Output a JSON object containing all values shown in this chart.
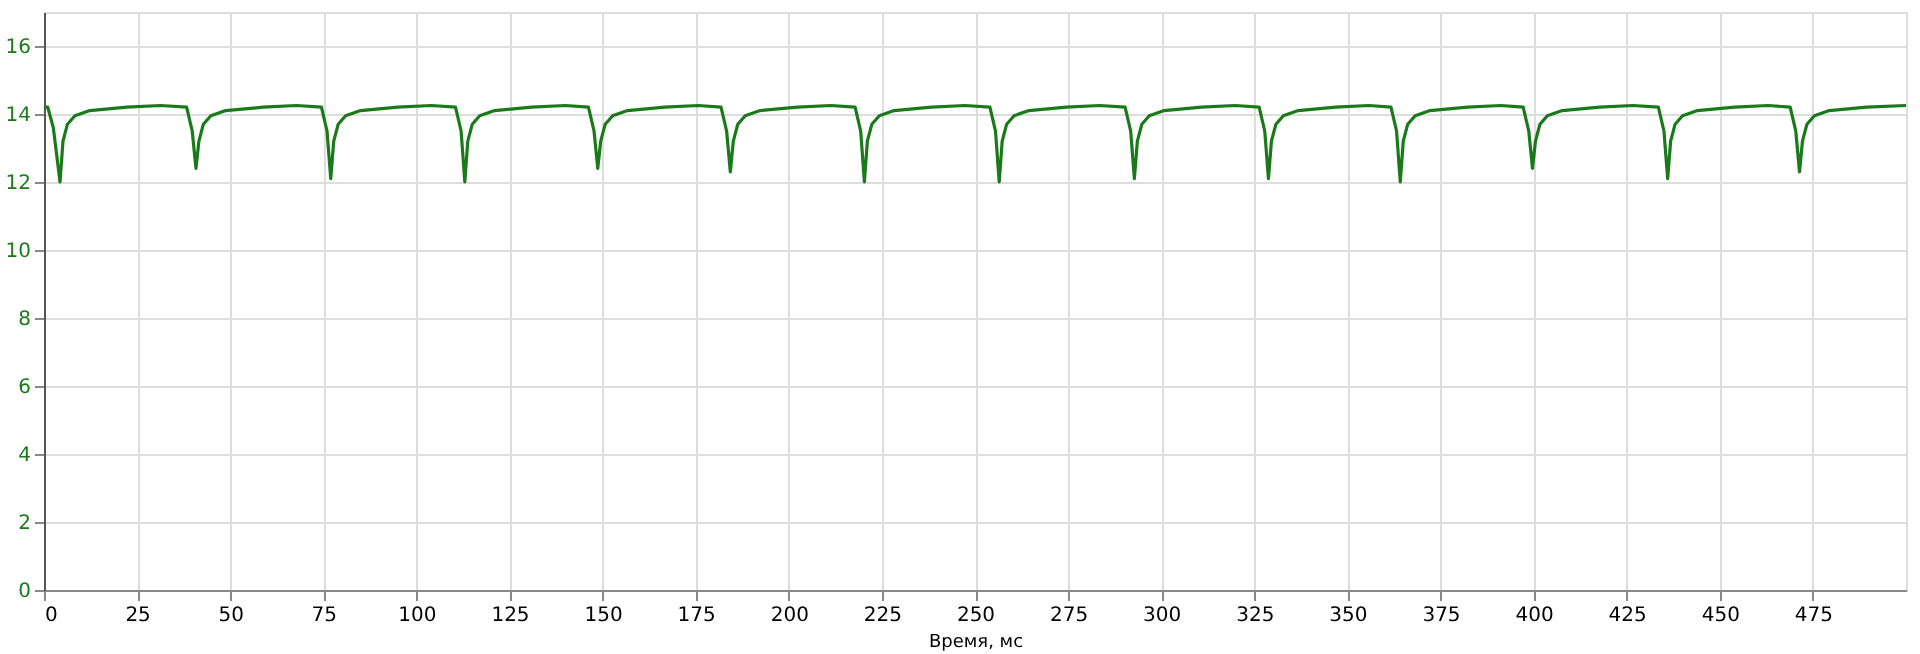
{
  "chart_data": {
    "type": "line",
    "xlabel": "Время, мс",
    "xlim": [
      0,
      500
    ],
    "xticks": [
      0,
      25,
      50,
      75,
      100,
      125,
      150,
      175,
      200,
      225,
      250,
      275,
      300,
      325,
      350,
      375,
      400,
      425,
      450,
      475
    ],
    "ylim": [
      0,
      17
    ],
    "yticks": [
      0,
      2,
      4,
      6,
      8,
      10,
      12,
      14,
      16
    ],
    "grid": true,
    "marker": "none",
    "line_style": "solid",
    "series": [
      {
        "color": "#1a7a1a",
        "x": [
          0,
          1,
          2.5,
          4.3,
          5.1,
          6.3,
          8.3,
          12.3,
          22.3,
          31.3,
          38.3,
          39.8,
          40.8,
          41.6,
          42.8,
          44.8,
          48.8,
          58.8,
          67.8,
          74.5,
          76.0,
          77.0,
          77.8,
          79.0,
          81.0,
          85.0,
          95.0,
          104.0,
          110.5,
          112.0,
          113.0,
          113.8,
          115.0,
          117.0,
          121.0,
          131.0,
          140.0,
          146.2,
          147.7,
          148.7,
          149.5,
          150.7,
          152.7,
          156.7,
          166.7,
          175.7,
          181.8,
          183.3,
          184.3,
          185.1,
          186.3,
          188.3,
          192.3,
          202.3,
          211.3,
          217.8,
          219.3,
          220.3,
          221.1,
          222.3,
          224.3,
          228.3,
          238.3,
          247.3,
          254.0,
          255.5,
          256.5,
          257.3,
          258.5,
          260.5,
          264.5,
          274.5,
          283.5,
          290.3,
          291.8,
          292.8,
          293.6,
          294.8,
          296.8,
          300.8,
          310.8,
          319.8,
          326.3,
          327.8,
          328.8,
          329.6,
          330.8,
          332.8,
          336.8,
          346.8,
          355.8,
          361.7,
          363.2,
          364.2,
          365.0,
          366.2,
          368.2,
          372.2,
          382.2,
          391.2,
          397.2,
          398.7,
          399.7,
          400.5,
          401.7,
          403.7,
          407.7,
          417.7,
          426.7,
          433.5,
          435.0,
          436.0,
          436.8,
          438.0,
          440.0,
          444.0,
          454.0,
          463.0,
          468.9,
          470.4,
          471.4,
          472.2,
          473.4,
          475.4,
          479.4,
          489.4,
          500
        ],
        "values": [
          14.2,
          14.2,
          13.6,
          12.0,
          13.2,
          13.7,
          13.95,
          14.1,
          14.2,
          14.25,
          14.2,
          13.5,
          12.4,
          13.2,
          13.7,
          13.95,
          14.1,
          14.2,
          14.25,
          14.2,
          13.5,
          12.1,
          13.2,
          13.7,
          13.95,
          14.1,
          14.2,
          14.25,
          14.2,
          13.5,
          12.0,
          13.2,
          13.7,
          13.95,
          14.1,
          14.2,
          14.25,
          14.2,
          13.5,
          12.4,
          13.2,
          13.7,
          13.95,
          14.1,
          14.2,
          14.25,
          14.2,
          13.5,
          12.3,
          13.2,
          13.7,
          13.95,
          14.1,
          14.2,
          14.25,
          14.2,
          13.5,
          12.0,
          13.2,
          13.7,
          13.95,
          14.1,
          14.2,
          14.25,
          14.2,
          13.5,
          12.0,
          13.2,
          13.7,
          13.95,
          14.1,
          14.2,
          14.25,
          14.2,
          13.5,
          12.1,
          13.2,
          13.7,
          13.95,
          14.1,
          14.2,
          14.25,
          14.2,
          13.5,
          12.1,
          13.2,
          13.7,
          13.95,
          14.1,
          14.2,
          14.25,
          14.2,
          13.5,
          12.0,
          13.2,
          13.7,
          13.95,
          14.1,
          14.2,
          14.25,
          14.2,
          13.5,
          12.4,
          13.2,
          13.7,
          13.95,
          14.1,
          14.2,
          14.25,
          14.2,
          13.5,
          12.1,
          13.2,
          13.7,
          13.95,
          14.1,
          14.2,
          14.25,
          14.2,
          13.5,
          12.3,
          13.2,
          13.7,
          13.95,
          14.1,
          14.2,
          14.25
        ]
      }
    ]
  }
}
